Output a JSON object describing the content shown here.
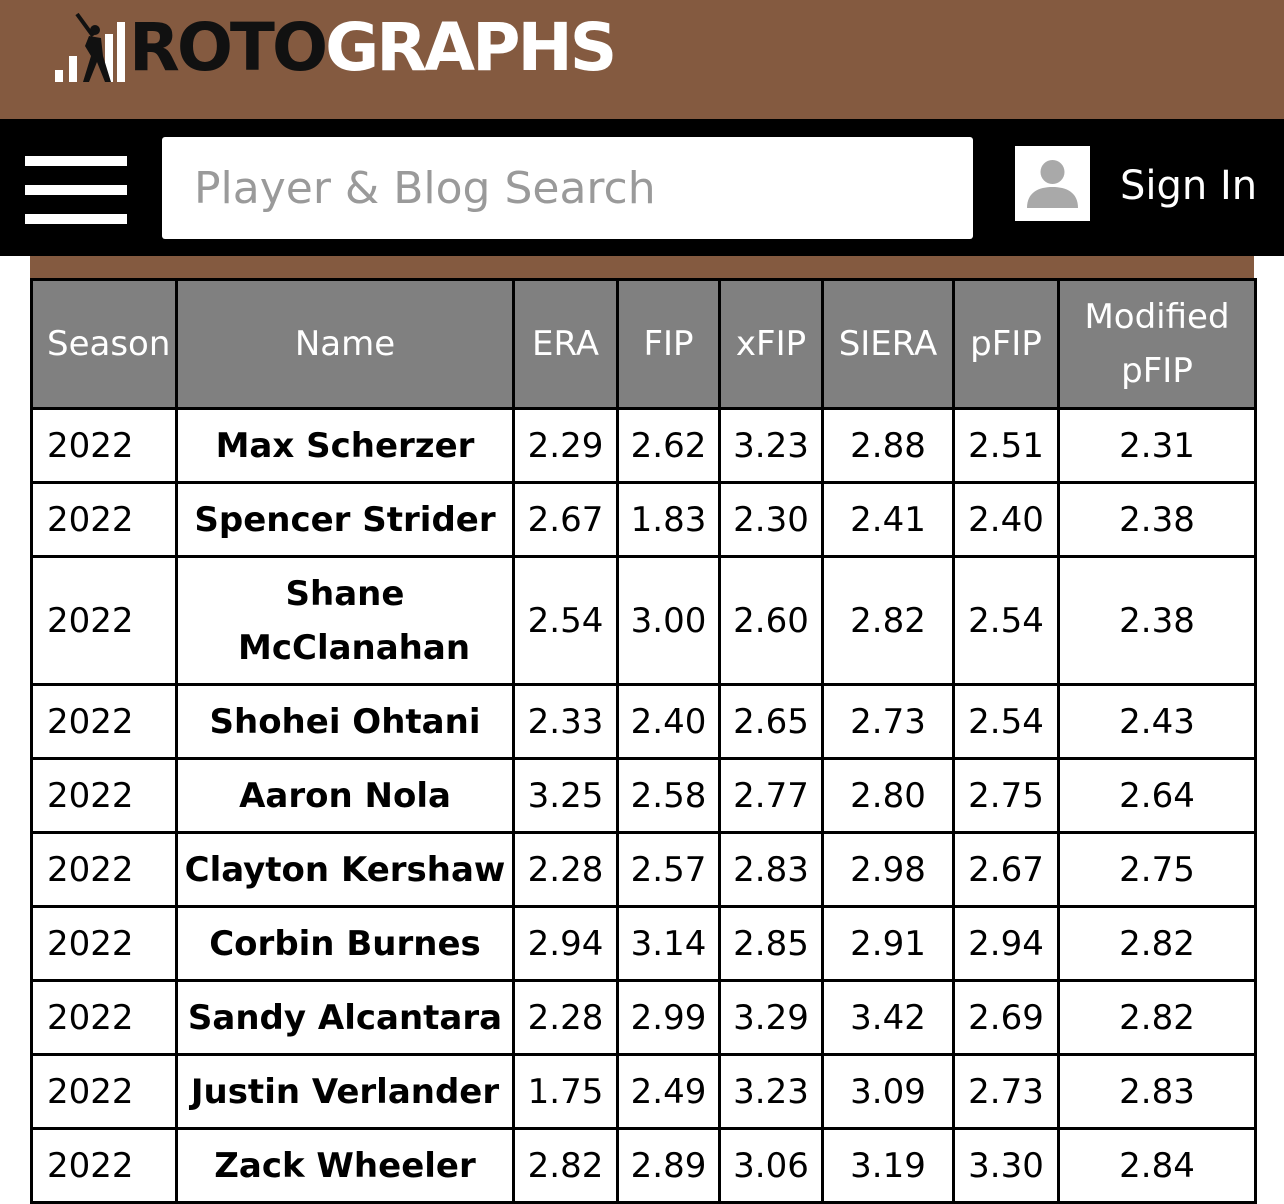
{
  "brand": {
    "logo_part1": "ROTO",
    "logo_part2": "GRAPHS",
    "logo_icon": "batter-bars-logo-icon"
  },
  "nav": {
    "menu_icon": "hamburger-menu-icon",
    "search_placeholder": "Player & Blog Search",
    "avatar_icon": "user-avatar-icon",
    "sign_in_label": "Sign In"
  },
  "colors": {
    "brand_brown": "#845a40",
    "nav_black": "#000000",
    "header_gray": "#808080"
  },
  "table": {
    "headers": [
      "Season",
      "Name",
      "ERA",
      "FIP",
      "xFIP",
      "SIERA",
      "pFIP",
      "Modified pFIP"
    ],
    "rows": [
      {
        "season": "2022",
        "name": "Max Scherzer",
        "era": "2.29",
        "fip": "2.62",
        "xfip": "3.23",
        "siera": "2.88",
        "pfip": "2.51",
        "mod_pfip": "2.31"
      },
      {
        "season": "2022",
        "name": "Spencer Strider",
        "era": "2.67",
        "fip": "1.83",
        "xfip": "2.30",
        "siera": "2.41",
        "pfip": "2.40",
        "mod_pfip": "2.38"
      },
      {
        "season": "2022",
        "name": "Shane McClanahan",
        "era": "2.54",
        "fip": "3.00",
        "xfip": "2.60",
        "siera": "2.82",
        "pfip": "2.54",
        "mod_pfip": "2.38"
      },
      {
        "season": "2022",
        "name": "Shohei Ohtani",
        "era": "2.33",
        "fip": "2.40",
        "xfip": "2.65",
        "siera": "2.73",
        "pfip": "2.54",
        "mod_pfip": "2.43"
      },
      {
        "season": "2022",
        "name": "Aaron Nola",
        "era": "3.25",
        "fip": "2.58",
        "xfip": "2.77",
        "siera": "2.80",
        "pfip": "2.75",
        "mod_pfip": "2.64"
      },
      {
        "season": "2022",
        "name": "Clayton Kershaw",
        "era": "2.28",
        "fip": "2.57",
        "xfip": "2.83",
        "siera": "2.98",
        "pfip": "2.67",
        "mod_pfip": "2.75"
      },
      {
        "season": "2022",
        "name": "Corbin Burnes",
        "era": "2.94",
        "fip": "3.14",
        "xfip": "2.85",
        "siera": "2.91",
        "pfip": "2.94",
        "mod_pfip": "2.82"
      },
      {
        "season": "2022",
        "name": "Sandy Alcantara",
        "era": "2.28",
        "fip": "2.99",
        "xfip": "3.29",
        "siera": "3.42",
        "pfip": "2.69",
        "mod_pfip": "2.82"
      },
      {
        "season": "2022",
        "name": "Justin Verlander",
        "era": "1.75",
        "fip": "2.49",
        "xfip": "3.23",
        "siera": "3.09",
        "pfip": "2.73",
        "mod_pfip": "2.83"
      },
      {
        "season": "2022",
        "name": "Zack Wheeler",
        "era": "2.82",
        "fip": "2.89",
        "xfip": "3.06",
        "siera": "3.19",
        "pfip": "3.30",
        "mod_pfip": "2.84"
      }
    ]
  }
}
